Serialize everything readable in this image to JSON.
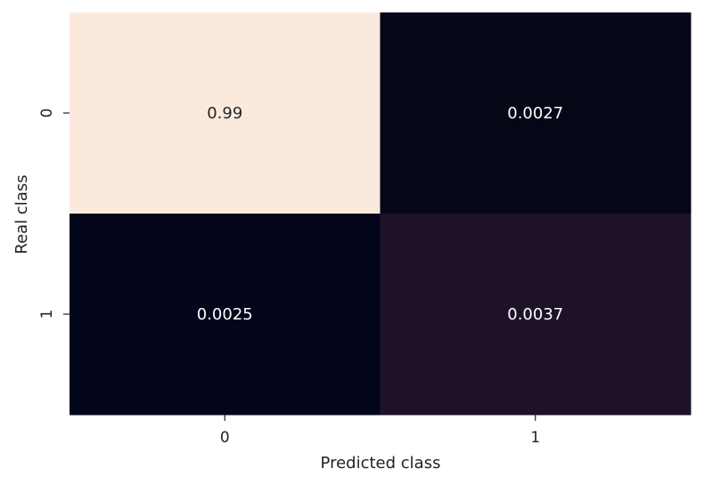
{
  "chart_data": {
    "type": "heatmap",
    "title": "",
    "xlabel": "Predicted class",
    "ylabel": "Real class",
    "x_categories": [
      "0",
      "1"
    ],
    "y_categories": [
      "0",
      "1"
    ],
    "values": [
      [
        0.99,
        0.0027
      ],
      [
        0.0025,
        0.0037
      ]
    ],
    "value_labels": [
      [
        "0.99",
        "0.0027"
      ],
      [
        "0.0025",
        "0.0037"
      ]
    ],
    "colorbar": false,
    "colormap": "rocket",
    "cell_colors": [
      [
        "#faeade",
        "#040716"
      ],
      [
        "#03051a",
        "#1d1228"
      ]
    ],
    "annotation_colors": [
      [
        "#262626",
        "#ffffff"
      ],
      [
        "#ffffff",
        "#ffffff"
      ]
    ]
  }
}
